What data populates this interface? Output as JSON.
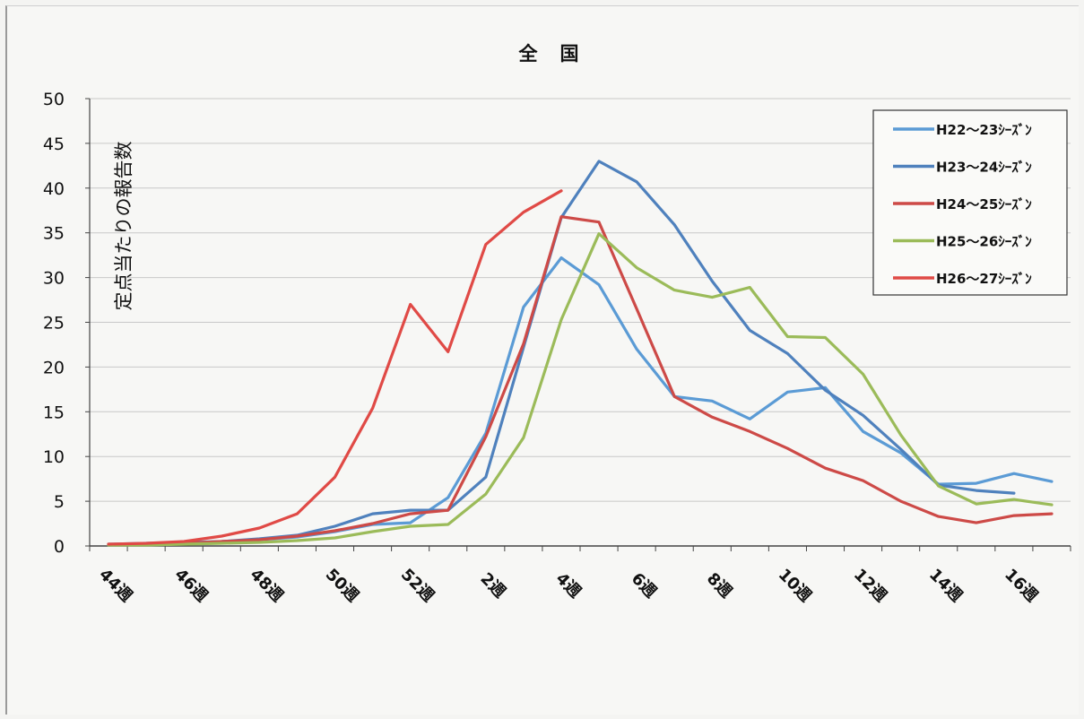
{
  "chart_data": {
    "type": "line",
    "title": "全　国",
    "ylabel": "定点当たりの報告数",
    "ylim": [
      0,
      50
    ],
    "yticks": [
      "0",
      "5",
      "10",
      "15",
      "20",
      "25",
      "30",
      "35",
      "40",
      "45",
      "50"
    ],
    "x_weeks": [
      44,
      45,
      46,
      47,
      48,
      49,
      50,
      51,
      52,
      1,
      2,
      3,
      4,
      5,
      6,
      7,
      8,
      9,
      10,
      11,
      12,
      13,
      14,
      15,
      16,
      17
    ],
    "x_tick_labels": [
      "44週",
      "46週",
      "48週",
      "50週",
      "52週",
      "2週",
      "4週",
      "6週",
      "8週",
      "10週",
      "12週",
      "14週",
      "16週"
    ],
    "grid": true,
    "legend_position": "top-right",
    "series": [
      {
        "name": "H22～23ｼｰｽﾞﾝ",
        "color": "#5b9bd5",
        "values": [
          0.2,
          0.3,
          0.4,
          0.5,
          0.7,
          1.0,
          1.6,
          2.4,
          2.6,
          5.4,
          12.6,
          26.7,
          32.2,
          29.2,
          22.0,
          16.7,
          16.2,
          14.2,
          17.2,
          17.7,
          12.8,
          10.4,
          6.9,
          7.0,
          8.1,
          7.2
        ]
      },
      {
        "name": "H23～24ｼｰｽﾞﾝ",
        "color": "#4f81bd",
        "values": [
          0.1,
          0.2,
          0.3,
          0.5,
          0.8,
          1.2,
          2.2,
          3.6,
          4.0,
          4.0,
          7.7,
          22.2,
          36.7,
          43.0,
          40.7,
          35.9,
          29.6,
          24.1,
          21.5,
          17.4,
          14.6,
          10.8,
          6.8,
          6.2,
          5.9,
          null
        ]
      },
      {
        "name": "H24～25ｼｰｽﾞﾝ",
        "color": "#cd4a47",
        "values": [
          0.2,
          0.2,
          0.3,
          0.5,
          0.7,
          1.1,
          1.7,
          2.5,
          3.6,
          4.0,
          12.2,
          22.6,
          36.8,
          36.2,
          26.5,
          16.7,
          14.4,
          12.8,
          10.9,
          8.7,
          7.3,
          5.0,
          3.3,
          2.6,
          3.4,
          3.6
        ]
      },
      {
        "name": "H25～26ｼｰｽﾞﾝ",
        "color": "#9bbb59",
        "values": [
          0.1,
          0.1,
          0.2,
          0.3,
          0.4,
          0.6,
          0.9,
          1.6,
          2.2,
          2.4,
          5.8,
          12.1,
          25.3,
          34.9,
          31.1,
          28.6,
          27.8,
          28.9,
          23.4,
          23.3,
          19.2,
          12.4,
          6.7,
          4.7,
          5.2,
          4.6
        ]
      },
      {
        "name": "H26～27ｼｰｽﾞﾝ",
        "color": "#e04a46",
        "values": [
          0.2,
          0.3,
          0.5,
          1.1,
          2.0,
          3.6,
          7.7,
          15.4,
          27.0,
          21.7,
          33.7,
          37.3,
          39.7,
          null,
          null,
          null,
          null,
          null,
          null,
          null,
          null,
          null,
          null,
          null,
          null,
          null
        ]
      }
    ]
  }
}
